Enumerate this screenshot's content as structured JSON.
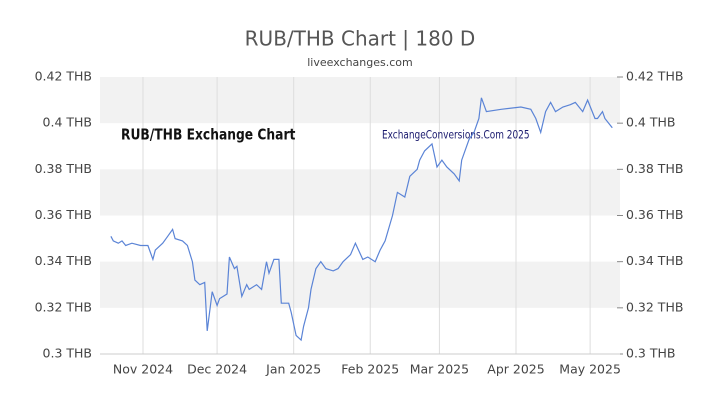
{
  "chart_data": {
    "type": "line",
    "title": "RUB/THB Chart | 180 D",
    "subtitle": "liveexchanges.com",
    "annotations": [
      "RUB/THB Exchange Chart",
      "ExchangeConversions.Com 2025"
    ],
    "color": "#5b84d6",
    "grid": true,
    "x": [
      -13,
      -12,
      -10,
      -8.5,
      -7,
      -4.5,
      -1,
      2,
      4,
      5,
      8,
      10,
      12,
      13,
      16,
      18,
      20,
      21,
      23,
      25,
      26,
      28,
      30,
      31,
      34,
      35,
      37,
      38,
      40,
      42,
      43,
      46,
      48,
      50,
      51,
      53,
      55,
      56,
      59,
      60,
      62,
      64,
      65,
      67,
      68,
      70,
      72,
      74,
      77,
      79,
      81,
      84,
      86,
      89,
      91,
      94,
      96,
      98,
      101,
      103,
      106,
      108,
      111,
      112,
      114,
      117,
      119,
      121,
      123,
      126,
      128,
      129,
      132,
      134,
      136,
      137,
      139,
      145,
      153,
      157,
      159,
      161,
      163,
      165,
      167,
      170,
      173,
      175,
      178,
      180,
      183,
      184,
      186,
      187,
      190
    ],
    "values": [
      0.351,
      0.349,
      0.348,
      0.349,
      0.347,
      0.348,
      0.347,
      0.347,
      0.341,
      0.345,
      0.348,
      0.351,
      0.354,
      0.35,
      0.349,
      0.347,
      0.34,
      0.332,
      0.33,
      0.331,
      0.31,
      0.327,
      0.321,
      0.324,
      0.326,
      0.342,
      0.337,
      0.338,
      0.325,
      0.33,
      0.328,
      0.33,
      0.328,
      0.34,
      0.335,
      0.341,
      0.341,
      0.322,
      0.322,
      0.318,
      0.308,
      0.306,
      0.312,
      0.32,
      0.328,
      0.337,
      0.34,
      0.337,
      0.336,
      0.337,
      0.34,
      0.343,
      0.348,
      0.341,
      0.342,
      0.34,
      0.345,
      0.349,
      0.36,
      0.37,
      0.368,
      0.377,
      0.38,
      0.384,
      0.388,
      0.391,
      0.381,
      0.384,
      0.381,
      0.378,
      0.375,
      0.384,
      0.393,
      0.396,
      0.402,
      0.411,
      0.405,
      0.406,
      0.407,
      0.406,
      0.402,
      0.396,
      0.405,
      0.409,
      0.405,
      0.407,
      0.408,
      0.409,
      0.405,
      0.41,
      0.402,
      0.402,
      0.405,
      0.402,
      0.398
    ],
    "xlim": [
      -17.4,
      193.1
    ],
    "xticks": [
      {
        "value": 0,
        "label": "Nov 2024"
      },
      {
        "value": 30,
        "label": "Dec 2024"
      },
      {
        "value": 61,
        "label": "Jan 2025"
      },
      {
        "value": 92,
        "label": "Feb 2025"
      },
      {
        "value": 120,
        "label": "Mar 2025"
      },
      {
        "value": 151,
        "label": "Apr 2025"
      },
      {
        "value": 181,
        "label": "May 2025"
      }
    ],
    "ylim": [
      0.3,
      0.42
    ],
    "yticks": [
      {
        "value": 0.3,
        "label": "0.3 THB"
      },
      {
        "value": 0.32,
        "label": "0.32 THB"
      },
      {
        "value": 0.34,
        "label": "0.34 THB"
      },
      {
        "value": 0.36,
        "label": "0.36 THB"
      },
      {
        "value": 0.38,
        "label": "0.38 THB"
      },
      {
        "value": 0.4,
        "label": "0.4 THB"
      },
      {
        "value": 0.42,
        "label": "0.42 THB"
      }
    ]
  }
}
